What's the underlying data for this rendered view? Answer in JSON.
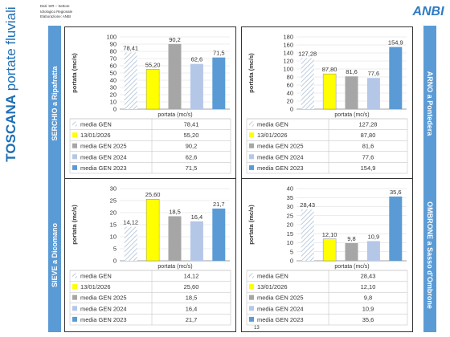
{
  "page": {
    "title_bold": "TOSCANA",
    "title_rest": " portate fluviali",
    "source_lines": [
      "Dati: SIR – Settore",
      "Idrologico Regionale",
      "Elaborazione: ANBI"
    ],
    "page_number": "13",
    "logo_text": "ANBI"
  },
  "colors": {
    "media_gen": "#dbe6f3",
    "d13": "#ffff00",
    "g2025": "#a6a6a6",
    "g2024": "#b4c7e7",
    "g2023": "#5b9bd5",
    "label_bg": "#5b9bd5",
    "title": "#1f6fb4"
  },
  "chart_data": [
    {
      "type": "bar",
      "station": "SERCHIO a Ripafratta",
      "ylabel": "portata (mc/s)",
      "xlabel": "portata (mc/s)",
      "ylim": [
        0,
        100
      ],
      "yticks": [
        0,
        10,
        20,
        30,
        40,
        50,
        60,
        70,
        80,
        90,
        100
      ],
      "legend_header": "portata (mc/s)",
      "series": [
        {
          "name": "media GEN",
          "value": 78.41,
          "label": "78,41"
        },
        {
          "name": "13/01/2026",
          "value": 55.2,
          "label": "55,20"
        },
        {
          "name": "media GEN 2025",
          "value": 90.2,
          "label": "90,2"
        },
        {
          "name": "media GEN 2024",
          "value": 62.6,
          "label": "62,6"
        },
        {
          "name": "media GEN 2023",
          "value": 71.5,
          "label": "71,5"
        }
      ]
    },
    {
      "type": "bar",
      "station": "ARNO a Pontedera",
      "ylabel": "portata (mc/s)",
      "xlabel": "portata (mc/s)",
      "ylim": [
        0,
        180
      ],
      "yticks": [
        0,
        20,
        40,
        60,
        80,
        100,
        120,
        140,
        160,
        180
      ],
      "legend_header": "portata (mc/s)",
      "series": [
        {
          "name": "media GEN",
          "value": 127.28,
          "label": "127,28"
        },
        {
          "name": "13/01/2026",
          "value": 87.8,
          "label": "87,80"
        },
        {
          "name": "media GEN 2025",
          "value": 81.6,
          "label": "81,6"
        },
        {
          "name": "media GEN 2024",
          "value": 77.6,
          "label": "77,6"
        },
        {
          "name": "media GEN 2023",
          "value": 154.9,
          "label": "154,9"
        }
      ]
    },
    {
      "type": "bar",
      "station": "SIEVE a Dicomano",
      "ylabel": "portata (mc/s)",
      "xlabel": "portata (mc/s)",
      "ylim": [
        0,
        30
      ],
      "yticks": [
        0,
        5,
        10,
        15,
        20,
        25,
        30
      ],
      "legend_header": "",
      "series": [
        {
          "name": "media GEN",
          "value": 14.12,
          "label": "14,12"
        },
        {
          "name": "13/01/2026",
          "value": 25.6,
          "label": "25,60"
        },
        {
          "name": "media GEN 2025",
          "value": 18.5,
          "label": "18,5"
        },
        {
          "name": "media GEN 2024",
          "value": 16.4,
          "label": "16,4"
        },
        {
          "name": "media GEN 2023",
          "value": 21.7,
          "label": "21,7"
        }
      ]
    },
    {
      "type": "bar",
      "station": "OMBRONE a Sasso d'Ombrone",
      "ylabel": "portata (mc/s)",
      "xlabel": "portata (mc/s)",
      "ylim": [
        0,
        40
      ],
      "yticks": [
        0,
        5,
        10,
        15,
        20,
        25,
        30,
        35,
        40
      ],
      "legend_header": "",
      "series": [
        {
          "name": "media GEN",
          "value": 28.43,
          "label": "28,43"
        },
        {
          "name": "13/01/2026",
          "value": 12.1,
          "label": "12,10"
        },
        {
          "name": "media GEN 2025",
          "value": 9.8,
          "label": "9,8"
        },
        {
          "name": "media GEN 2024",
          "value": 10.9,
          "label": "10,9"
        },
        {
          "name": "media GEN 2023",
          "value": 35.6,
          "label": "35,6"
        }
      ]
    }
  ]
}
